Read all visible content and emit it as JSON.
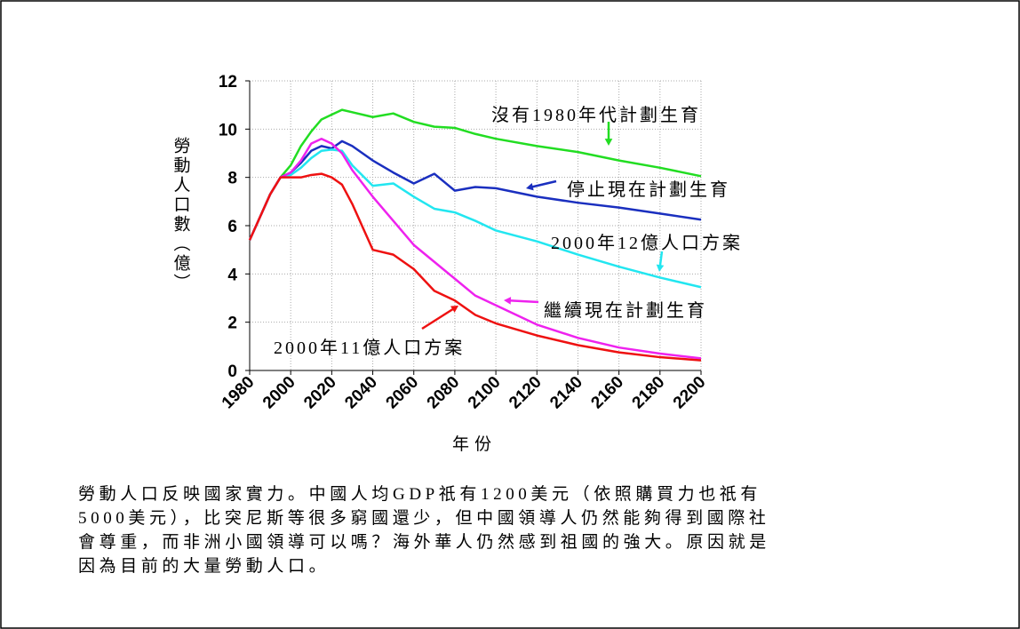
{
  "chart_data": {
    "type": "line",
    "ylabel": "勞動人口數（億）",
    "xlabel": "年份",
    "x": [
      1980,
      1990,
      1995,
      2000,
      2005,
      2010,
      2015,
      2020,
      2025,
      2030,
      2040,
      2050,
      2060,
      2070,
      2080,
      2090,
      2100,
      2120,
      2140,
      2160,
      2180,
      2200
    ],
    "xlim": [
      1980,
      2200
    ],
    "xticks": [
      1980,
      2000,
      2020,
      2040,
      2060,
      2080,
      2100,
      2120,
      2140,
      2160,
      2180,
      2200
    ],
    "ylim": [
      0,
      12
    ],
    "yticks": [
      0,
      2,
      4,
      6,
      8,
      10,
      12
    ],
    "grid": true,
    "series": [
      {
        "name": "沒有1980年代計劃生育",
        "color": "#22dd22",
        "values": [
          5.4,
          7.3,
          8.0,
          8.5,
          9.3,
          9.9,
          10.4,
          10.6,
          10.8,
          10.7,
          10.5,
          10.65,
          10.3,
          10.1,
          10.05,
          9.8,
          9.6,
          9.3,
          9.05,
          8.7,
          8.4,
          8.05
        ]
      },
      {
        "name": "停止現在計劃生育",
        "color": "#1a2fbf",
        "values": [
          5.4,
          7.3,
          8.0,
          8.2,
          8.6,
          9.1,
          9.3,
          9.2,
          9.5,
          9.3,
          8.7,
          8.2,
          7.75,
          8.15,
          7.45,
          7.6,
          7.55,
          7.2,
          6.95,
          6.75,
          6.5,
          6.25
        ]
      },
      {
        "name": "2000年12億人口方案",
        "color": "#22e6f0",
        "values": [
          5.4,
          7.3,
          8.0,
          8.1,
          8.4,
          8.8,
          9.1,
          9.15,
          9.1,
          8.5,
          7.65,
          7.75,
          7.2,
          6.7,
          6.55,
          6.2,
          5.8,
          5.35,
          4.8,
          4.3,
          3.85,
          3.45
        ]
      },
      {
        "name": "繼續現在計劃生育",
        "color": "#ee22ee",
        "values": [
          5.4,
          7.3,
          8.0,
          8.2,
          8.7,
          9.4,
          9.6,
          9.4,
          9.0,
          8.3,
          7.2,
          6.2,
          5.2,
          4.5,
          3.8,
          3.1,
          2.7,
          1.9,
          1.35,
          0.95,
          0.7,
          0.5
        ]
      },
      {
        "name": "2000年11億人口方案",
        "color": "#ee1111",
        "values": [
          5.4,
          7.3,
          8.0,
          8.0,
          8.0,
          8.1,
          8.15,
          8.0,
          7.7,
          6.9,
          5.0,
          4.8,
          4.2,
          3.3,
          2.9,
          2.3,
          1.95,
          1.45,
          1.05,
          0.75,
          0.55,
          0.42
        ]
      }
    ]
  },
  "paragraph": [
    "勞動人口反映國家實力。中國人均GDP祇有1200美元（依照購買力也祇有",
    "5000美元），比突尼斯等很多窮國還少，但中國領導人仍然能夠得到國際社",
    "會尊重，而非洲小國領導可以嗎？海外華人仍然感到祖國的強大。原因就是",
    "因為目前的大量勞動人口。"
  ]
}
